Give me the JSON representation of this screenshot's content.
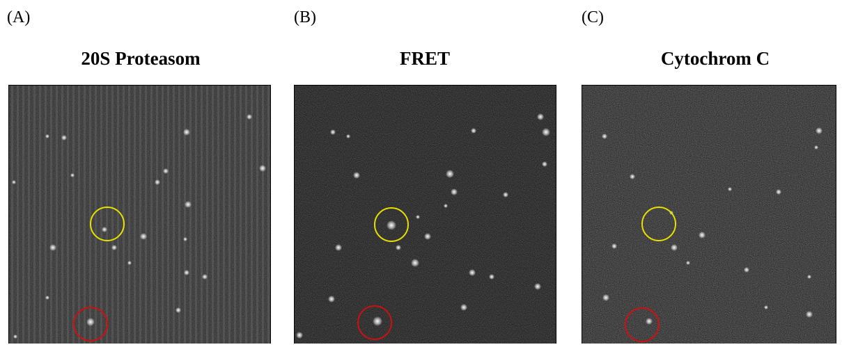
{
  "panels": [
    {
      "label": "(A)",
      "title": "20S Proteasom"
    },
    {
      "label": "(B)",
      "title": "FRET"
    },
    {
      "label": "(C)",
      "title": "Cytochrom C"
    }
  ]
}
